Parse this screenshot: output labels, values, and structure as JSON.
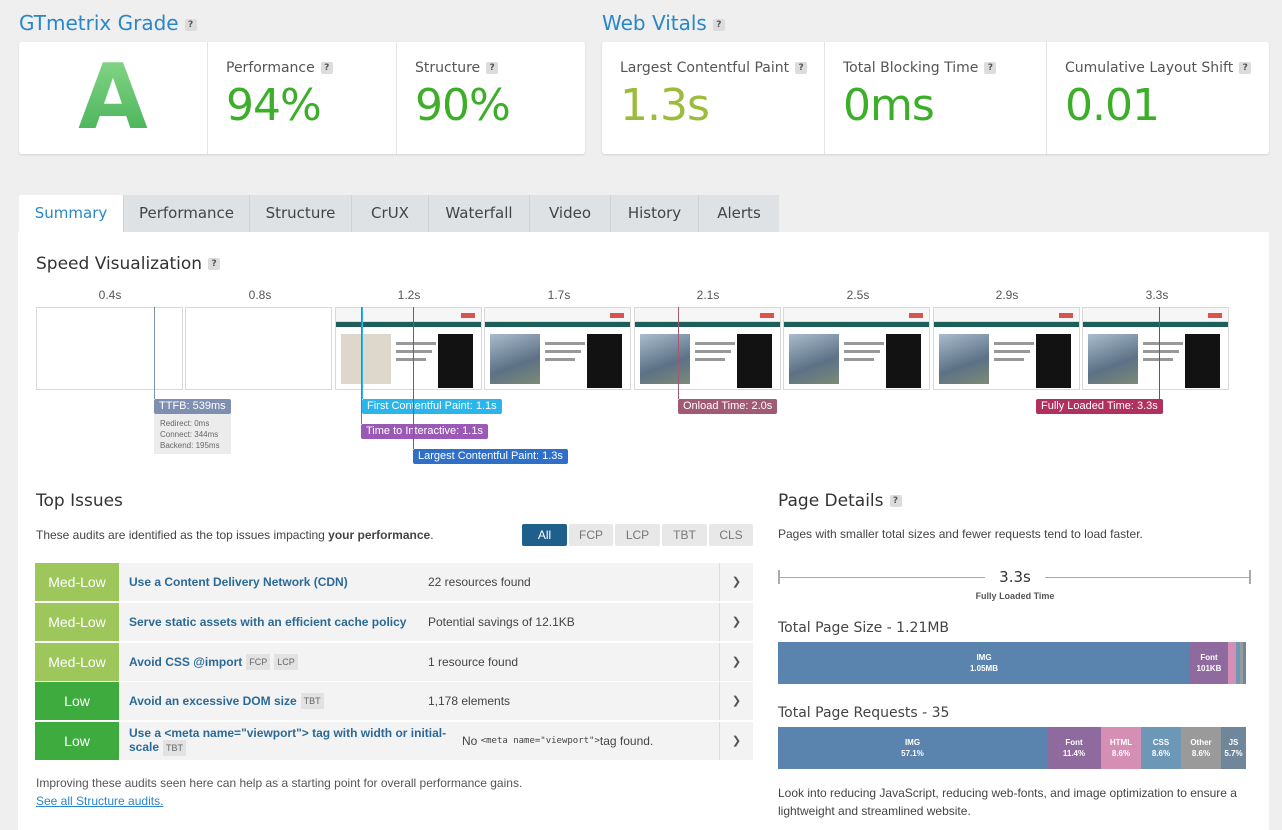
{
  "grade": {
    "title": "GTmetrix Grade",
    "help": "?",
    "letter": "A",
    "performance_label": "Performance",
    "performance_value": "94%",
    "structure_label": "Structure",
    "structure_value": "90%"
  },
  "web_vitals": {
    "title": "Web Vitals",
    "help": "?",
    "lcp_label": "Largest Contentful Paint",
    "lcp_value": "1.3s",
    "tbt_label": "Total Blocking Time",
    "tbt_value": "0ms",
    "cls_label": "Cumulative Layout Shift",
    "cls_value": "0.01"
  },
  "tabs": [
    "Summary",
    "Performance",
    "Structure",
    "CrUX",
    "Waterfall",
    "Video",
    "History",
    "Alerts"
  ],
  "speed": {
    "title": "Speed Visualization",
    "ticks": [
      "0.4s",
      "0.8s",
      "1.2s",
      "1.7s",
      "2.1s",
      "2.5s",
      "2.9s",
      "3.3s"
    ],
    "ttfb": "TTFB: 539ms",
    "redirect": "Redirect: 0ms",
    "connect": "Connect: 344ms",
    "backend": "Backend: 195ms",
    "fcp": "First Contentful Paint: 1.1s",
    "tti": "Time to Interactive: 1.1s",
    "lcp": "Largest Contentful Paint: 1.3s",
    "onload": "Onload Time: 2.0s",
    "fully_loaded": "Fully Loaded Time: 3.3s"
  },
  "top_issues": {
    "title": "Top Issues",
    "intro_pre": "These audits are identified as the top issues impacting ",
    "intro_bold": "your performance",
    "intro_post": ".",
    "filters": [
      "All",
      "FCP",
      "LCP",
      "TBT",
      "CLS"
    ],
    "rows": [
      {
        "severity": "Med-Low",
        "title": "Use a Content Delivery Network (CDN)",
        "tags": [],
        "info": "22 resources found"
      },
      {
        "severity": "Med-Low",
        "title": "Serve static assets with an efficient cache policy",
        "tags": [],
        "info": "Potential savings of 12.1KB"
      },
      {
        "severity": "Med-Low",
        "title": "Avoid CSS @import",
        "tags": [
          "FCP",
          "LCP"
        ],
        "info": "1 resource found"
      },
      {
        "severity": "Low",
        "title": "Avoid an excessive DOM size",
        "tags": [
          "TBT"
        ],
        "info": "1,178 elements"
      },
      {
        "severity": "Low",
        "title": "Use a <meta name=\"viewport\"> tag with width or initial-scale",
        "tags": [
          "TBT"
        ],
        "info_pre": "No ",
        "info_code": "<meta name=\"viewport\">",
        "info_post": " tag found."
      }
    ],
    "footer": "Improving these audits seen here can help as a starting point for overall performance gains.",
    "link": "See all Structure audits."
  },
  "page_details": {
    "title": "Page Details",
    "intro": "Pages with smaller total sizes and fewer requests tend to load faster.",
    "fully_loaded_value": "3.3s",
    "fully_loaded_label": "Fully Loaded Time",
    "size_title": "Total Page Size - 1.21MB",
    "size_img_label": "IMG",
    "size_img_value": "1.05MB",
    "size_font_label": "Font",
    "size_font_value": "101KB",
    "requests_title": "Total Page Requests - 35",
    "req_img": [
      "IMG",
      "57.1%"
    ],
    "req_font": [
      "Font",
      "11.4%"
    ],
    "req_html": [
      "HTML",
      "8.6%"
    ],
    "req_css": [
      "CSS",
      "8.6%"
    ],
    "req_other": [
      "Other",
      "8.6%"
    ],
    "req_js": [
      "JS",
      "5.7%"
    ],
    "footer": "Look into reducing JavaScript, reducing web-fonts, and image optimization to ensure a lightweight and streamlined website."
  },
  "colors": {
    "grade_green": "#3bab4f",
    "metric_green": "#3cae2a",
    "lcp_yellowgreen": "#9bbd3b",
    "link_blue": "#2a86c8",
    "med_low": "#9dc75b",
    "low": "#3eab3f",
    "img": "#5a84ad",
    "font": "#8f6a9e",
    "html": "#d68fb4",
    "css": "#6c97b6",
    "other": "#9a9a9a",
    "js": "#70879b"
  }
}
